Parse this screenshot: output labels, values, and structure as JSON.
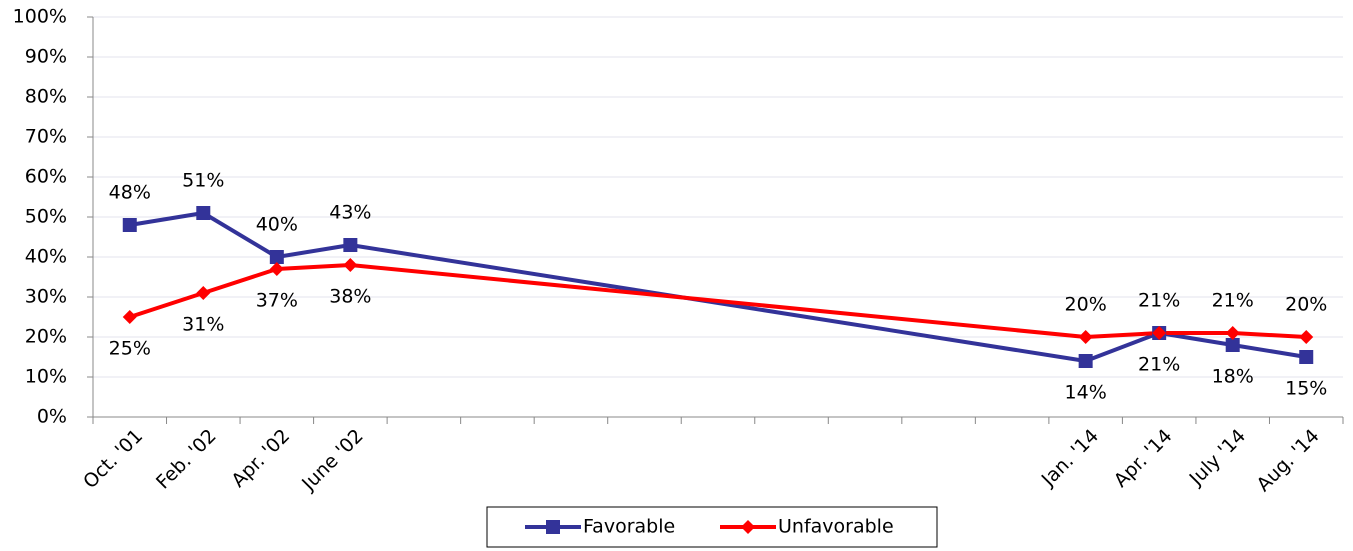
{
  "chart_data": {
    "type": "line",
    "x": [
      0,
      1,
      2,
      3,
      13,
      14,
      15,
      16
    ],
    "xlim": [
      -0.5,
      16.5
    ],
    "xticks": [
      {
        "value": 0,
        "label": "Oct. '01"
      },
      {
        "value": 1,
        "label": "Feb. '02"
      },
      {
        "value": 2,
        "label": "Apr. '02"
      },
      {
        "value": 3,
        "label": "June '02"
      },
      {
        "value": 13,
        "label": "Jan. '14"
      },
      {
        "value": 14,
        "label": "Apr. '14"
      },
      {
        "value": 15,
        "label": "July '14"
      },
      {
        "value": 16,
        "label": "Aug. '14"
      }
    ],
    "ylim": [
      0,
      100
    ],
    "yticks": [
      {
        "value": 0,
        "label": "0%"
      },
      {
        "value": 10,
        "label": "10%"
      },
      {
        "value": 20,
        "label": "20%"
      },
      {
        "value": 30,
        "label": "30%"
      },
      {
        "value": 40,
        "label": "40%"
      },
      {
        "value": 50,
        "label": "50%"
      },
      {
        "value": 60,
        "label": "60%"
      },
      {
        "value": 70,
        "label": "70%"
      },
      {
        "value": 80,
        "label": "80%"
      },
      {
        "value": 90,
        "label": "90%"
      },
      {
        "value": 100,
        "label": "100%"
      }
    ],
    "grid": true,
    "legend": "bottom",
    "series": [
      {
        "name": "Favorable",
        "color": "#333399",
        "marker": "square",
        "label_side": [
          "above",
          "above",
          "above",
          "above",
          "below",
          "below",
          "below",
          "below"
        ],
        "values": [
          48,
          51,
          40,
          43,
          14,
          21,
          18,
          15
        ],
        "value_labels": [
          "48%",
          "51%",
          "40%",
          "43%",
          "14%",
          "21%",
          "18%",
          "15%"
        ]
      },
      {
        "name": "Unfavorable",
        "color": "#ff0000",
        "marker": "diamond",
        "label_side": [
          "below",
          "below",
          "below",
          "below",
          "above",
          "above",
          "above",
          "above"
        ],
        "values": [
          25,
          31,
          37,
          38,
          20,
          21,
          21,
          20
        ],
        "value_labels": [
          "25%",
          "31%",
          "37%",
          "38%",
          "20%",
          "21%",
          "21%",
          "20%"
        ]
      }
    ]
  }
}
